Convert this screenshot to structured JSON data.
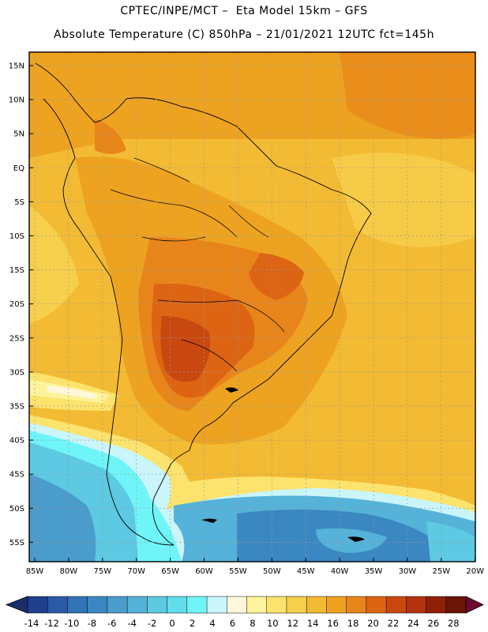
{
  "header": {
    "line1": "CPTEC/INPE/MCT –  Eta Model 15km – GFS",
    "line2": "Absolute Temperature (C) 850hPa – 21/01/2021 12UTC fct=145h"
  },
  "map": {
    "lat_labels": [
      "15N",
      "10N",
      "5N",
      "EQ",
      "5S",
      "10S",
      "15S",
      "20S",
      "25S",
      "30S",
      "35S",
      "40S",
      "45S",
      "50S",
      "55S"
    ],
    "lon_labels": [
      "85W",
      "80W",
      "75W",
      "70W",
      "65W",
      "60W",
      "55W",
      "50W",
      "45W",
      "40W",
      "35W",
      "30W",
      "25W",
      "20W"
    ]
  },
  "colorbar": {
    "labels": [
      "-14",
      "-12",
      "-10",
      "-8",
      "-6",
      "-4",
      "-2",
      "0",
      "2",
      "4",
      "6",
      "8",
      "10",
      "12",
      "14",
      "16",
      "18",
      "20",
      "22",
      "24",
      "26",
      "28"
    ],
    "colors": [
      "#1f3f8f",
      "#2a5aa6",
      "#3272b6",
      "#3b87c2",
      "#4a9ccc",
      "#55b2d8",
      "#5dc9e2",
      "#63dcec",
      "#6ff5f8",
      "#c9f5fb",
      "#fff7dc",
      "#fdf39a",
      "#fbe36d",
      "#f6cf4c",
      "#f3bb33",
      "#eea320",
      "#e8851a",
      "#dd6413",
      "#c9480f",
      "#b2340c",
      "#8f2107",
      "#6b1506"
    ]
  }
}
